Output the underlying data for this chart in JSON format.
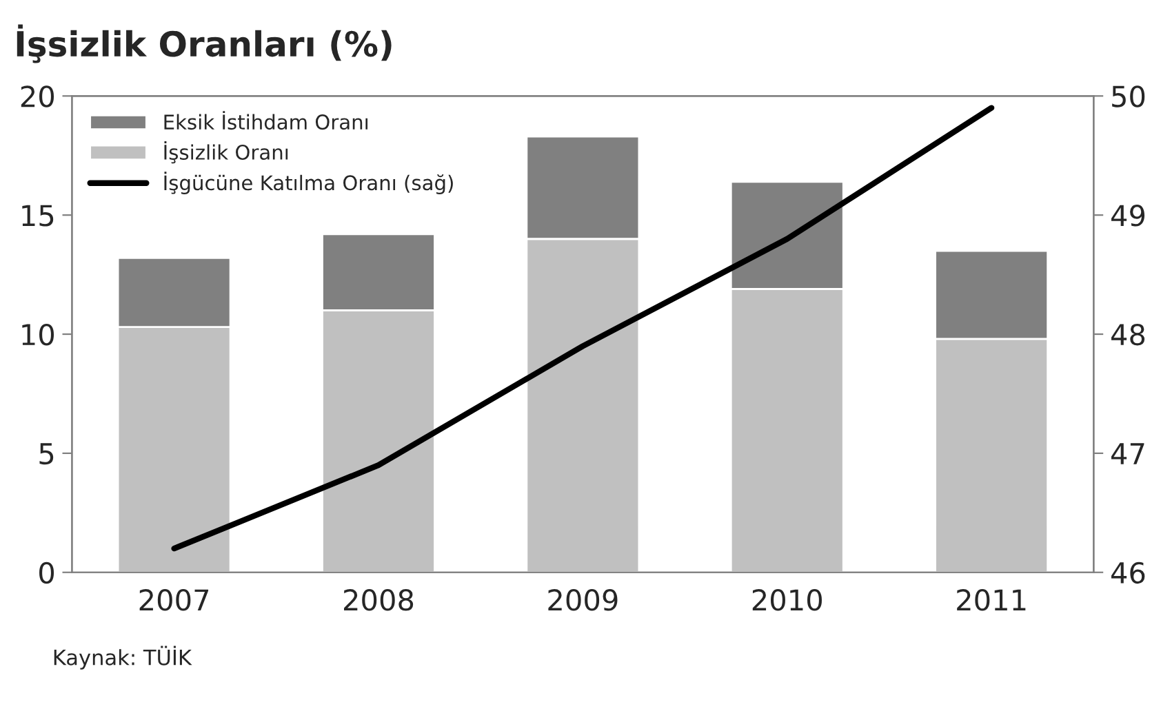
{
  "chart_data": {
    "type": "bar",
    "title": "İşsizlik Oranları (%)",
    "categories": [
      "2007",
      "2008",
      "2009",
      "2010",
      "2011"
    ],
    "stacked": true,
    "series": [
      {
        "name": "İşsizlik Oranı",
        "color": "#c0c0c0",
        "values": [
          10.3,
          11.0,
          14.0,
          11.9,
          9.8
        ]
      },
      {
        "name": "Eksik İstihdam Oranı",
        "color": "#808080",
        "values": [
          2.9,
          3.2,
          4.3,
          4.5,
          3.7
        ]
      },
      {
        "name": "İşgücüne Katılma Oranı (sağ)",
        "type": "line",
        "axis": "y2",
        "color": "#000000",
        "values": [
          46.2,
          46.9,
          47.9,
          48.8,
          49.9
        ]
      }
    ],
    "ylim": [
      0,
      20
    ],
    "yticks": [
      0,
      5,
      10,
      15,
      20
    ],
    "y2lim": [
      46,
      50
    ],
    "y2ticks": [
      46,
      47,
      48,
      49,
      50
    ],
    "grid": false,
    "legend": "top left",
    "marker": "none",
    "line_style": "solid",
    "annotations": [
      "Kaynak: TÜİK"
    ]
  }
}
